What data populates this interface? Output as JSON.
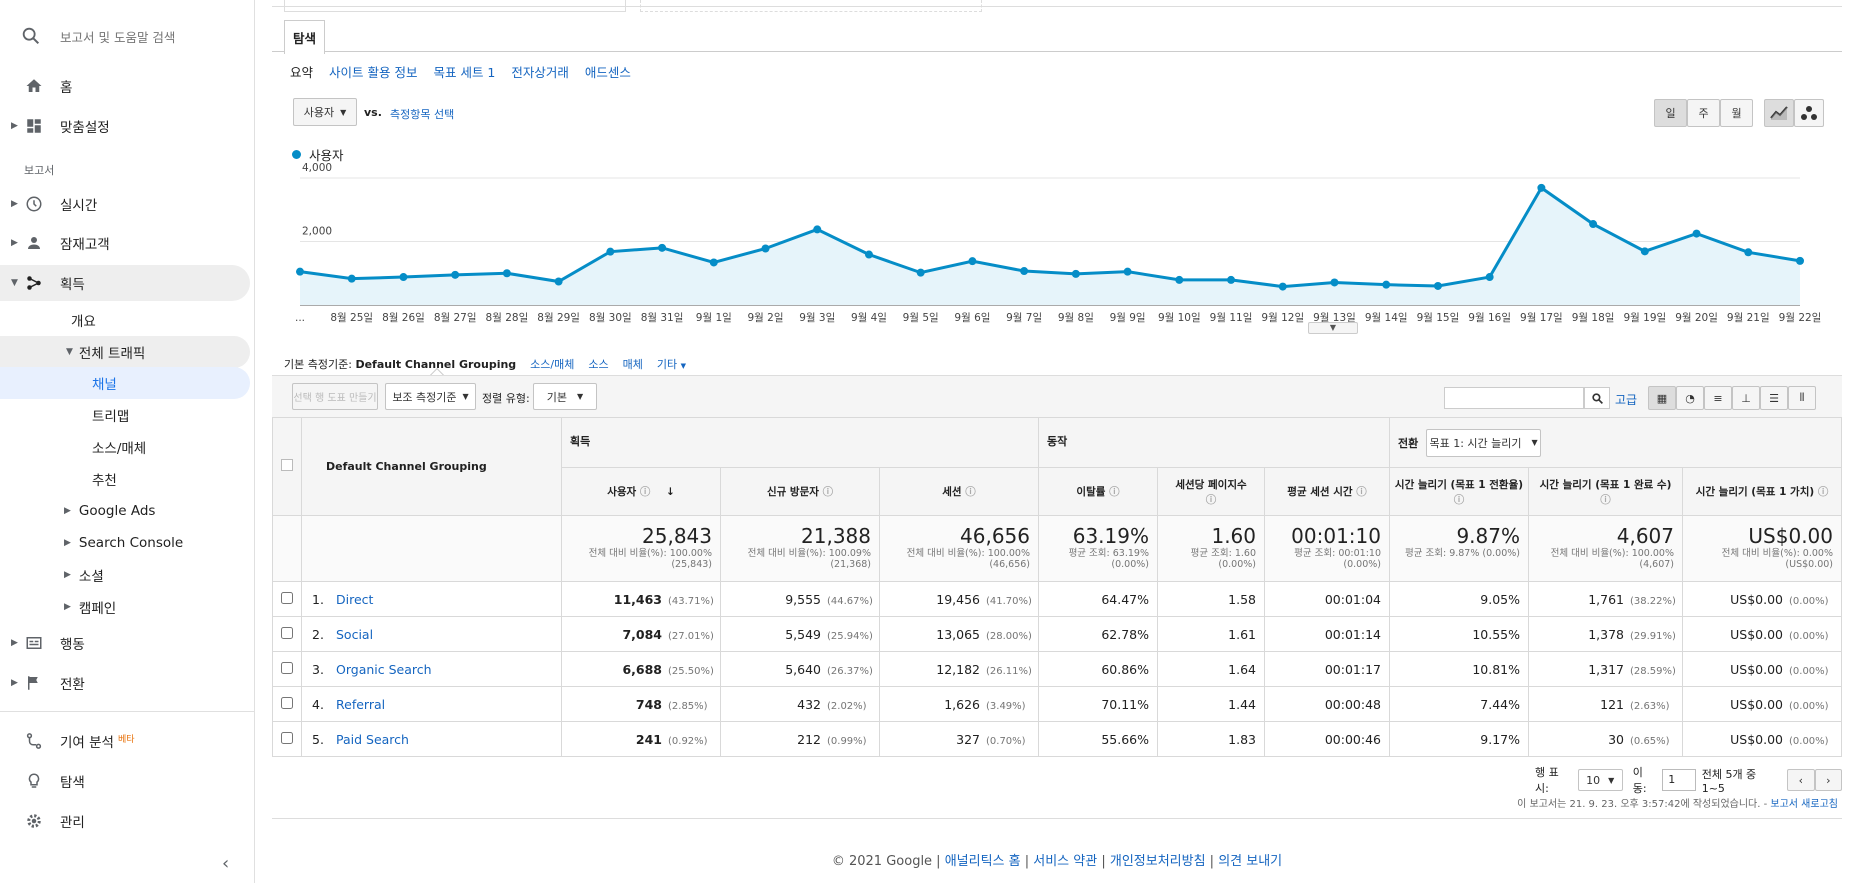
{
  "sidebar": {
    "search_placeholder": "보고서 및 도움말 검색",
    "home": "홈",
    "custom": "맞춤설정",
    "reports_label": "보고서",
    "realtime": "실시간",
    "audience": "잠재고객",
    "acquisition": "획득",
    "overview": "개요",
    "all_traffic": "전체 트래픽",
    "channels": "채널",
    "treemaps": "트리맵",
    "source_medium": "소스/매체",
    "referrals": "추천",
    "google_ads": "Google Ads",
    "search_console": "Search Console",
    "social": "소셜",
    "campaigns": "캠페인",
    "behavior": "행동",
    "conversions": "전환",
    "attribution": "기여 분석",
    "attribution_badge": "베타",
    "discover": "탐색",
    "admin": "관리"
  },
  "main": {
    "tab": "탐색",
    "subtabs": [
      "요약",
      "사이트 활용 정보",
      "목표 세트 1",
      "전자상거래",
      "애드센스"
    ],
    "metric_select": "사용자",
    "vs": "vs.",
    "select_metric": "측정항목 선택",
    "period_buttons": [
      "일",
      "주",
      "월"
    ],
    "legend": "사용자",
    "primary_dim_label": "기본 측정기준:",
    "primary_dim": "Default Channel Grouping",
    "dim_links": [
      "소스/매체",
      "소스",
      "매체",
      "기타"
    ],
    "make_chart": "선택 행 도표 만들기",
    "secondary_dim": "보조 측정기준",
    "sort_label": "정렬 유형:",
    "sort_value": "기본",
    "advanced": "고급"
  },
  "chart_data": {
    "type": "area",
    "title": "",
    "series": [
      {
        "name": "사용자",
        "color": "#058dc7",
        "values": [
          1050,
          830,
          880,
          950,
          1000,
          740,
          1680,
          1800,
          1340,
          1780,
          2380,
          1590,
          1020,
          1380,
          1070,
          980,
          1050,
          790,
          790,
          580,
          710,
          640,
          600,
          880,
          3690,
          2550,
          1690,
          2250,
          1660,
          1390
        ]
      }
    ],
    "x_labels": [
      "...",
      "8월 25일",
      "8월 26일",
      "8월 27일",
      "8월 28일",
      "8월 29일",
      "8월 30일",
      "8월 31일",
      "9월 1일",
      "9월 2일",
      "9월 3일",
      "9월 4일",
      "9월 5일",
      "9월 6일",
      "9월 7일",
      "9월 8일",
      "9월 9일",
      "9월 10일",
      "9월 11일",
      "9월 12일",
      "9월 13일",
      "9월 14일",
      "9월 15일",
      "9월 16일",
      "9월 17일",
      "9월 18일",
      "9월 19일",
      "9월 20일",
      "9월 21일",
      "9월 22일"
    ],
    "y_ticks": [
      "2,000",
      "4,000"
    ],
    "ylim": [
      0,
      4000
    ],
    "grid": true
  },
  "table": {
    "dim_header": "Default Channel Grouping",
    "group_acq": "획득",
    "group_beh": "동작",
    "group_conv": "전환",
    "goal_select": "목표 1: 시간 늘리기",
    "columns": [
      "사용자",
      "신규 방문자",
      "세션",
      "이탈률",
      "세션당 페이지수",
      "평균 세션 시간",
      "시간 늘리기 (목표 1 전환율)",
      "시간 늘리기 (목표 1 완료 수)",
      "시간 늘리기 (목표 1 가치)"
    ],
    "totals": [
      {
        "v": "25,843",
        "s1": "전체 대비 비율(%): 100.00%",
        "s2": "(25,843)"
      },
      {
        "v": "21,388",
        "s1": "전체 대비 비율(%): 100.09%",
        "s2": "(21,368)"
      },
      {
        "v": "46,656",
        "s1": "전체 대비 비율(%): 100.00%",
        "s2": "(46,656)"
      },
      {
        "v": "63.19%",
        "s1": "평균 조회: 63.19%",
        "s2": "(0.00%)"
      },
      {
        "v": "1.60",
        "s1": "평균 조회: 1.60",
        "s2": "(0.00%)"
      },
      {
        "v": "00:01:10",
        "s1": "평균 조회: 00:01:10",
        "s2": "(0.00%)"
      },
      {
        "v": "9.87%",
        "s1": "평균 조회: 9.87% (0.00%)",
        "s2": ""
      },
      {
        "v": "4,607",
        "s1": "전체 대비 비율(%): 100.00%",
        "s2": "(4,607)"
      },
      {
        "v": "US$0.00",
        "s1": "전체 대비 비율(%): 0.00%",
        "s2": "(US$0.00)"
      }
    ],
    "rows": [
      {
        "n": "1.",
        "name": "Direct",
        "users": "11,463",
        "users_p": "(43.71%)",
        "new": "9,555",
        "new_p": "(44.67%)",
        "sess": "19,456",
        "sess_p": "(41.70%)",
        "br": "64.47%",
        "pps": "1.58",
        "dur": "00:01:04",
        "cr": "9.05%",
        "comp": "1,761",
        "comp_p": "(38.22%)",
        "val": "US$0.00",
        "val_p": "(0.00%)"
      },
      {
        "n": "2.",
        "name": "Social",
        "users": "7,084",
        "users_p": "(27.01%)",
        "new": "5,549",
        "new_p": "(25.94%)",
        "sess": "13,065",
        "sess_p": "(28.00%)",
        "br": "62.78%",
        "pps": "1.61",
        "dur": "00:01:14",
        "cr": "10.55%",
        "comp": "1,378",
        "comp_p": "(29.91%)",
        "val": "US$0.00",
        "val_p": "(0.00%)"
      },
      {
        "n": "3.",
        "name": "Organic Search",
        "users": "6,688",
        "users_p": "(25.50%)",
        "new": "5,640",
        "new_p": "(26.37%)",
        "sess": "12,182",
        "sess_p": "(26.11%)",
        "br": "60.86%",
        "pps": "1.64",
        "dur": "00:01:17",
        "cr": "10.81%",
        "comp": "1,317",
        "comp_p": "(28.59%)",
        "val": "US$0.00",
        "val_p": "(0.00%)"
      },
      {
        "n": "4.",
        "name": "Referral",
        "users": "748",
        "users_p": "(2.85%)",
        "new": "432",
        "new_p": "(2.02%)",
        "sess": "1,626",
        "sess_p": "(3.49%)",
        "br": "70.11%",
        "pps": "1.44",
        "dur": "00:00:48",
        "cr": "7.44%",
        "comp": "121",
        "comp_p": "(2.63%)",
        "val": "US$0.00",
        "val_p": "(0.00%)"
      },
      {
        "n": "5.",
        "name": "Paid Search",
        "users": "241",
        "users_p": "(0.92%)",
        "new": "212",
        "new_p": "(0.99%)",
        "sess": "327",
        "sess_p": "(0.70%)",
        "br": "55.66%",
        "pps": "1.83",
        "dur": "00:00:46",
        "cr": "9.17%",
        "comp": "30",
        "comp_p": "(0.65%)",
        "val": "US$0.00",
        "val_p": "(0.00%)"
      }
    ]
  },
  "pagination": {
    "rows_label": "행 표시:",
    "rows_value": "10",
    "goto_label": "이동:",
    "goto_value": "1",
    "range": "전체 5개 중 1~5",
    "report_time": "이 보고서는 21. 9. 23. 오후 3:57:42에 작성되었습니다. - ",
    "refresh": "보고서 새로고침"
  },
  "footer": {
    "copyright": "© 2021 Google | ",
    "links": [
      "애널리틱스 홈",
      "서비스 약관",
      "개인정보처리방침",
      "의견 보내기"
    ]
  }
}
